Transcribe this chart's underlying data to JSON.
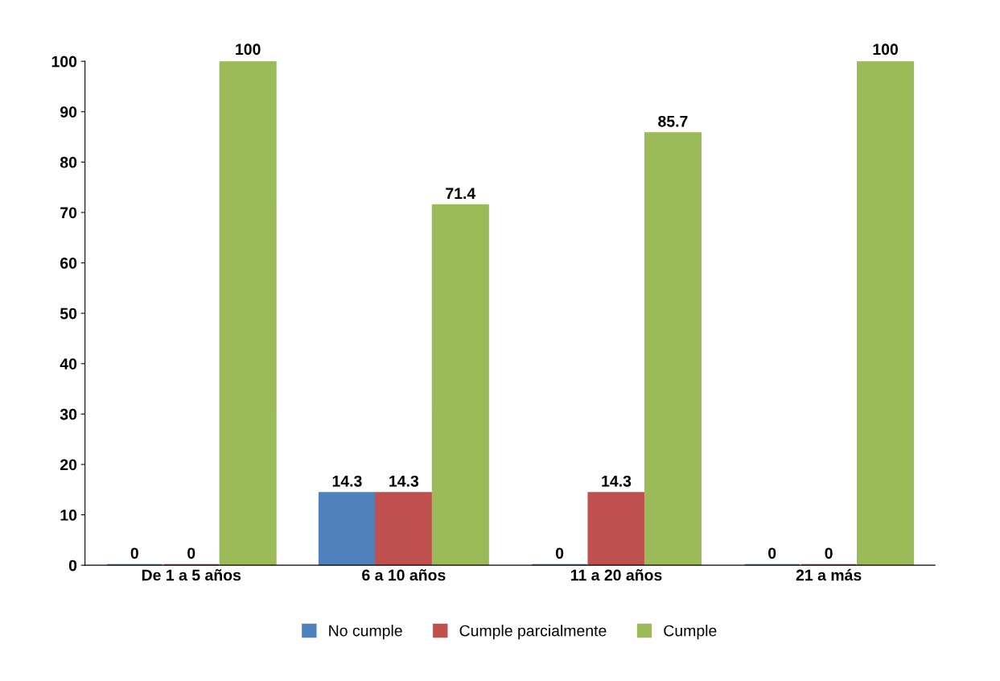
{
  "chart_data": {
    "type": "bar",
    "categories": [
      "De 1 a 5 años",
      "6 a 10 años",
      "11 a 20 años",
      "21 a más"
    ],
    "series": [
      {
        "name": "No cumple",
        "color": "#4f81bd",
        "values": [
          0,
          14.3,
          0,
          0
        ]
      },
      {
        "name": "Cumple parcialmente",
        "color": "#c0504d",
        "values": [
          0,
          14.3,
          14.3,
          0
        ]
      },
      {
        "name": "Cumple",
        "color": "#9bbb59",
        "values": [
          100,
          71.4,
          85.7,
          100
        ]
      }
    ],
    "ylim": [
      0,
      100
    ],
    "yticks": [
      0,
      10,
      20,
      30,
      40,
      50,
      60,
      70,
      80,
      90,
      100
    ],
    "grid": false,
    "legend": "bottom",
    "data_labels": true
  }
}
